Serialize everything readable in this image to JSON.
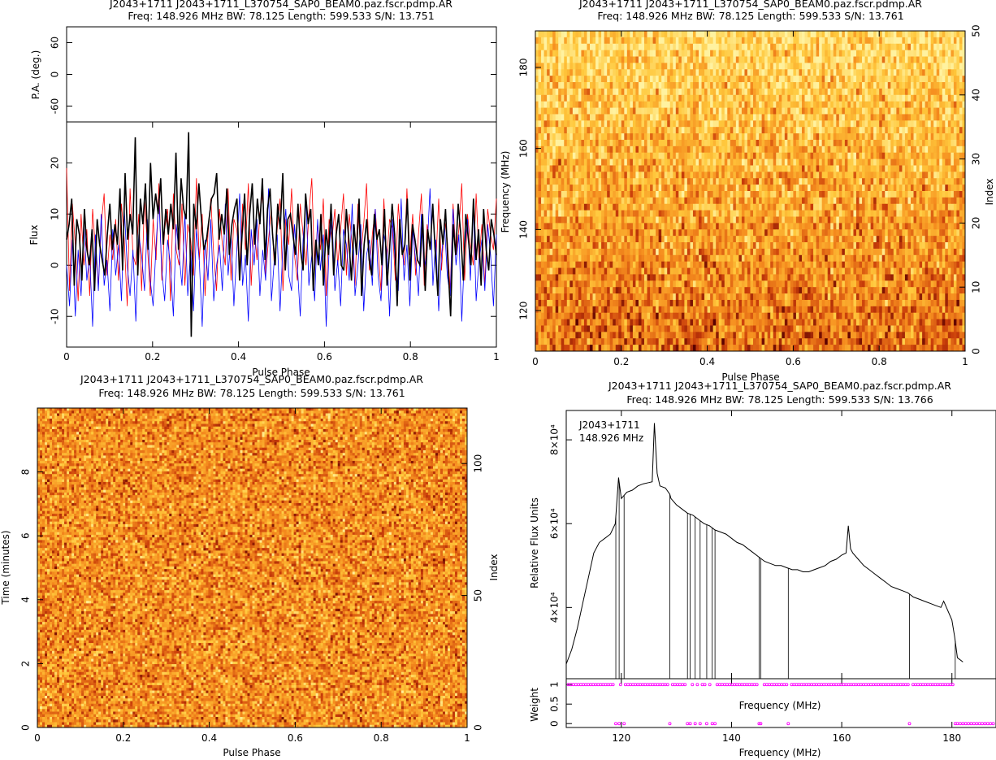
{
  "panels": {
    "profile": {
      "title1": "J2043+1711  J2043+1711_L370754_SAP0_BEAM0.paz.fscr.pdmp.AR",
      "title2": "Freq: 148.926 MHz BW: 78.125 Length: 599.533 S/N: 13.751"
    },
    "freqphase": {
      "title1": "J2043+1711  J2043+1711_L370754_SAP0_BEAM0.paz.fscr.pdmp.AR",
      "title2": "Freq: 148.926 MHz BW: 78.125 Length: 599.533 S/N: 13.761"
    },
    "timephase": {
      "title1": "J2043+1711  J2043+1711_L370754_SAP0_BEAM0.paz.fscr.pdmp.AR",
      "title2": "Freq: 148.926 MHz BW: 78.125 Length: 599.533 S/N: 13.761"
    },
    "bandpass": {
      "title1": "J2043+1711  J2043+1711_L370754_SAP0_BEAM0.paz.fscr.pdmp.AR",
      "title2": "Freq: 148.926 MHz BW: 78.125 Length: 599.533 S/N: 13.766",
      "legend_name": "J2043+1711",
      "legend_freq": "148.926 MHz"
    }
  },
  "colors": {
    "total_intensity": "#000000",
    "linear_pol": "#ff0000",
    "circular_pol": "#0000ff",
    "weights": "#ff00ff",
    "heat_low": "#fff2a0",
    "heat_high": "#5a0000"
  },
  "chart_data": [
    {
      "type": "line",
      "panel": "pa",
      "ylabel": "P.A. (deg.)",
      "xlim": [
        0,
        1
      ],
      "ylim": [
        -90,
        90
      ],
      "yticks": [
        -60,
        0,
        60
      ],
      "series": []
    },
    {
      "type": "line",
      "panel": "profile",
      "xlabel": "Pulse Phase",
      "ylabel": "Flux",
      "xlim": [
        0,
        1
      ],
      "ylim": [
        -16,
        28
      ],
      "xticks": [
        0,
        0.2,
        0.4,
        0.6,
        0.8,
        1
      ],
      "yticks": [
        -10,
        0,
        10,
        20
      ],
      "series": [
        {
          "values": [
            5,
            8,
            13,
            -4,
            9,
            6,
            -3,
            11,
            3,
            0,
            7,
            -5,
            9,
            4,
            1,
            -2,
            6,
            12,
            3,
            8,
            4,
            15,
            -1,
            18,
            5,
            10,
            6,
            25,
            -2,
            13,
            8,
            16,
            3,
            20,
            9,
            14,
            10,
            17,
            4,
            11,
            6,
            12,
            7,
            22,
            3,
            17,
            11,
            9,
            26,
            -14,
            12,
            7,
            16,
            9,
            3,
            5,
            9,
            13,
            14,
            18,
            5,
            10,
            6,
            15,
            2,
            8,
            11,
            13,
            -3,
            6,
            14,
            0,
            10,
            16,
            4,
            13,
            8,
            17,
            1,
            11,
            15,
            6,
            0,
            12,
            7,
            18,
            -1,
            9,
            10,
            6,
            2,
            12,
            3,
            -1,
            14,
            8,
            11,
            -5,
            5,
            0,
            10,
            -4,
            7,
            2,
            12,
            -2,
            6,
            10,
            0,
            -1,
            11,
            5,
            -3,
            8,
            2,
            13,
            -6,
            4,
            9,
            1,
            -2,
            10,
            5,
            7,
            0,
            11,
            -4,
            3,
            12,
            6,
            -8,
            9,
            2,
            4,
            13,
            -3,
            8,
            5,
            1,
            0,
            10,
            -5,
            7,
            3,
            12,
            2,
            -6,
            9,
            4,
            11,
            0,
            -10,
            8,
            2,
            12,
            6,
            -3,
            10,
            5,
            0,
            13,
            1,
            7,
            -4,
            11,
            3,
            -1,
            9,
            6,
            2
          ]
        },
        {
          "values": [
            19,
            -5,
            12,
            4,
            -7,
            10,
            0,
            7,
            -6,
            11,
            3,
            -4,
            8,
            14,
            -2,
            6,
            1,
            9,
            -3,
            12,
            5,
            -8,
            15,
            2,
            0,
            10,
            -5,
            13,
            4,
            -6,
            9,
            1,
            16,
            -3,
            7,
            11,
            -7,
            14,
            3,
            0,
            12,
            -4,
            8,
            5,
            -2,
            17,
            1,
            10,
            -6,
            6,
            13,
            2,
            -5,
            11,
            4,
            0,
            15,
            -3,
            9,
            7,
            -1,
            12,
            3,
            16,
            -4,
            8,
            1,
            10,
            14,
            -2,
            5,
            11,
            0,
            7,
            13,
            -5,
            9,
            4,
            15,
            2,
            -3,
            12,
            6,
            0,
            10,
            17,
            -1,
            8,
            3,
            13,
            -6,
            9,
            5,
            11,
            0,
            7,
            14,
            -2,
            10,
            4,
            -4,
            12,
            2,
            8,
            16,
            -1,
            6,
            11,
            3,
            -5,
            13,
            1,
            9,
            7,
            -3,
            12,
            4,
            0,
            15,
            2,
            10,
            -2,
            6,
            14,
            -4,
            8,
            3,
            11,
            0,
            13,
            -1,
            9,
            5,
            -5,
            12,
            2,
            7,
            16,
            -3,
            10,
            4,
            0,
            14,
            1,
            8,
            -4,
            11,
            6,
            3,
            13
          ]
        },
        {
          "values": [
            0,
            -8,
            5,
            -10,
            3,
            -6,
            8,
            -3,
            2,
            -12,
            6,
            -5,
            10,
            -4,
            1,
            -9,
            7,
            -2,
            4,
            -7,
            11,
            0,
            -6,
            3,
            -11,
            6,
            2,
            -5,
            9,
            -3,
            -8,
            4,
            13,
            -1,
            -7,
            5,
            0,
            -10,
            8,
            2,
            -4,
            10,
            -6,
            3,
            -9,
            7,
            1,
            -12,
            5,
            -3,
            9,
            -7,
            0,
            4,
            -5,
            12,
            -2,
            6,
            -8,
            3,
            14,
            -4,
            2,
            -11,
            7,
            0,
            9,
            -6,
            3,
            -3,
            15,
            -7,
            1,
            6,
            -9,
            4,
            11,
            -2,
            -5,
            8,
            0,
            -10,
            5,
            13,
            -4,
            2,
            -7,
            9,
            -1,
            6,
            -12,
            3,
            10,
            -5,
            1,
            -8,
            7,
            4,
            -3,
            12,
            -6,
            0,
            8,
            -9,
            2,
            5,
            -4,
            11,
            -2,
            -7,
            6,
            3,
            -10,
            9,
            0,
            -5,
            13,
            -3,
            4,
            -8,
            7,
            1,
            -6,
            10,
            -1,
            3,
            15,
            -4,
            5,
            -9,
            2,
            8,
            -2,
            -6,
            11,
            0,
            6,
            -11,
            3,
            9,
            -3,
            12,
            -7,
            1,
            5,
            -5,
            8,
            2,
            -8,
            6
          ]
        }
      ]
    },
    {
      "type": "heatmap",
      "panel": "freq-phase",
      "xlabel": "Pulse Phase",
      "ylabel": "Frequency (MHz)",
      "y2label": "Index",
      "xlim": [
        0,
        1
      ],
      "ylim": [
        110,
        189
      ],
      "y2lim": [
        0,
        50
      ],
      "xticks": [
        0,
        0.2,
        0.4,
        0.6,
        0.8,
        1
      ],
      "yticks": [
        120,
        140,
        160,
        180
      ],
      "y2ticks": [
        0,
        10,
        20,
        30,
        40,
        50
      ]
    },
    {
      "type": "heatmap",
      "panel": "time-phase",
      "xlabel": "Pulse Phase",
      "ylabel": "Time (minutes)",
      "y2label": "Index",
      "xlim": [
        0,
        1
      ],
      "ylim": [
        0,
        10
      ],
      "y2lim": [
        0,
        121
      ],
      "xticks": [
        0,
        0.2,
        0.4,
        0.6,
        0.8,
        1
      ],
      "yticks": [
        0,
        2,
        4,
        6,
        8
      ],
      "y2ticks": [
        0,
        50,
        100
      ]
    },
    {
      "type": "line",
      "panel": "bandpass",
      "xlabel": "Frequency (MHz)",
      "ylabel": "Relative Flux Units",
      "xlim": [
        110,
        188
      ],
      "ylim": [
        23000,
        87000
      ],
      "xticks": [
        120,
        140,
        160,
        180
      ],
      "yticks": [
        40000,
        60000,
        80000
      ],
      "ytick_labels": [
        "4×10⁴",
        "6×10⁴",
        "8×10⁴"
      ],
      "x": [
        110,
        111,
        112,
        113,
        114,
        115,
        116,
        117,
        118,
        118.9,
        119.5,
        120,
        121,
        122,
        123,
        124,
        125,
        125.6,
        126,
        126.5,
        127,
        128,
        128.8,
        129,
        130,
        131,
        132,
        133,
        134,
        135,
        136,
        137,
        138,
        139,
        140,
        141,
        142,
        143,
        144,
        145,
        146,
        147,
        148,
        149,
        150,
        151,
        152,
        153,
        154,
        155,
        156,
        157,
        158,
        159,
        160,
        160.8,
        161.2,
        161.6,
        162,
        163,
        164,
        165,
        166,
        167,
        168,
        169,
        170,
        171,
        172,
        173,
        174,
        175,
        176,
        177,
        178,
        178.5,
        179,
        180,
        180.5,
        181,
        182
      ],
      "values": [
        26500,
        30000,
        35000,
        41000,
        47000,
        53000,
        55500,
        56500,
        57500,
        60000,
        71000,
        66000,
        67500,
        68000,
        69000,
        69500,
        69800,
        70000,
        84000,
        72000,
        69000,
        68500,
        67000,
        66000,
        64500,
        63500,
        62500,
        62000,
        61000,
        60000,
        59500,
        58500,
        58000,
        57500,
        56500,
        55500,
        55000,
        54000,
        53000,
        52000,
        51000,
        50500,
        50000,
        50000,
        49500,
        49000,
        49000,
        48500,
        48500,
        49000,
        49500,
        50000,
        51000,
        51500,
        52500,
        53000,
        59500,
        54000,
        53000,
        51500,
        50000,
        49000,
        48000,
        47000,
        46000,
        45000,
        44500,
        44000,
        43500,
        42500,
        42000,
        41500,
        41000,
        40500,
        40000,
        41500,
        40000,
        37000,
        33000,
        28000,
        27000
      ]
    },
    {
      "type": "scatter",
      "panel": "weights",
      "xlabel": "Frequency (MHz)",
      "ylabel": "Weight",
      "xlim": [
        110,
        188
      ],
      "ylim": [
        -0.1,
        1.15
      ],
      "yticks": [
        0,
        0.5,
        1
      ],
      "zero_weight_channels": [
        119,
        119.6,
        120.5,
        128.8,
        132,
        132.5,
        133.4,
        134.3,
        135.5,
        136.5,
        137,
        145,
        145.3,
        150.3,
        172.3,
        180.6,
        181,
        181.5,
        182,
        182.5,
        183,
        183.5,
        184,
        184.5,
        185,
        185.5,
        186,
        186.5,
        187,
        187.5
      ]
    }
  ]
}
